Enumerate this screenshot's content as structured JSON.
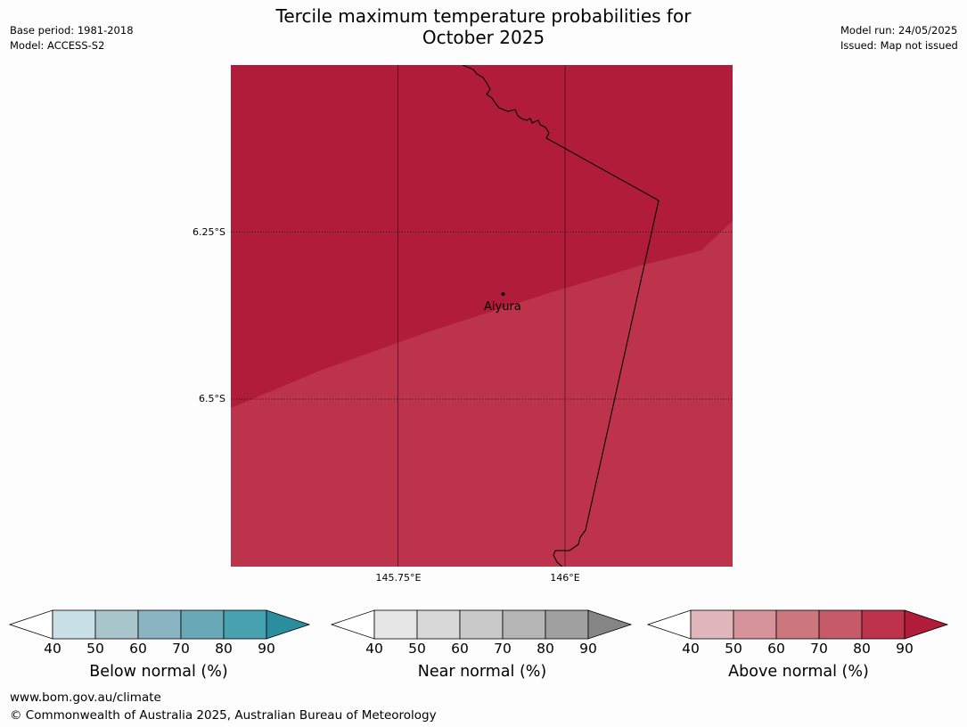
{
  "header": {
    "base_period": "Base period: 1981-2018",
    "model": "Model: ACCESS-S2",
    "model_run": "Model run: 24/05/2025",
    "issued": "Issued: Map not issued",
    "title_line1": "Tercile maximum temperature probabilities for",
    "title_line2": "October 2025"
  },
  "map": {
    "lat_labels": [
      "6.25°S",
      "6.5°S"
    ],
    "lon_labels": [
      "145.75°E",
      "146°E"
    ],
    "place": "Aiyura",
    "colors": {
      "above_90": "#b01c39",
      "above_80": "#bd334b"
    },
    "region_values": {
      "north_probability_band": "90+",
      "south_probability_band": "80-90"
    }
  },
  "legends": [
    {
      "label": "Below normal (%)",
      "ticks": [
        "40",
        "50",
        "60",
        "70",
        "80",
        "90"
      ],
      "colors": [
        "#ffffff",
        "#c8e0e6",
        "#a7c5cb",
        "#8ab4c1",
        "#6aaab8",
        "#46a1b0",
        "#2a8e9e"
      ]
    },
    {
      "label": "Near normal (%)",
      "ticks": [
        "40",
        "50",
        "60",
        "70",
        "80",
        "90"
      ],
      "colors": [
        "#ffffff",
        "#e6e6e6",
        "#d8d8d8",
        "#c9c9c9",
        "#b5b5b5",
        "#a0a0a0",
        "#858585"
      ]
    },
    {
      "label": "Above normal (%)",
      "ticks": [
        "40",
        "50",
        "60",
        "70",
        "80",
        "90"
      ],
      "colors": [
        "#ffffff",
        "#e1b7bc",
        "#d6939c",
        "#cc767e",
        "#c65a68",
        "#bd334b",
        "#b01c39"
      ]
    }
  ],
  "footer": {
    "url": "www.bom.gov.au/climate",
    "copyright": "© Commonwealth of Australia 2025, Australian Bureau of Meteorology"
  }
}
